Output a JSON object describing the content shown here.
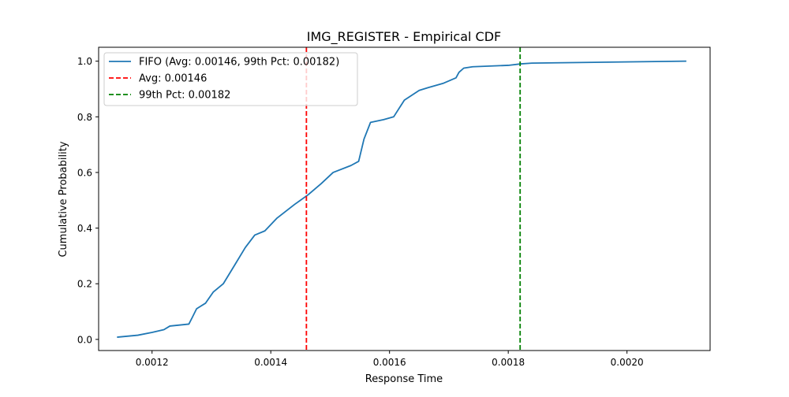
{
  "chart_data": {
    "type": "line",
    "title": "IMG_REGISTER - Empirical CDF",
    "xlabel": "Response Time",
    "ylabel": "Cumulative Probability",
    "xlim": [
      0.00111,
      0.00214
    ],
    "ylim": [
      -0.04,
      1.05
    ],
    "x_ticks": [
      0.0012,
      0.0014,
      0.0016,
      0.0018,
      0.002
    ],
    "x_tick_labels": [
      "0.0012",
      "0.0014",
      "0.0016",
      "0.0018",
      "0.0020"
    ],
    "y_ticks": [
      0.0,
      0.2,
      0.4,
      0.6,
      0.8,
      1.0
    ],
    "y_tick_labels": [
      "0.0",
      "0.2",
      "0.4",
      "0.6",
      "0.8",
      "1.0"
    ],
    "grid": false,
    "legend_position": "top-left",
    "series": [
      {
        "name": "FIFO (Avg: 0.00146, 99th Pct: 0.00182)",
        "color": "#1f77b4",
        "x": [
          0.001141,
          0.001176,
          0.0012,
          0.00122,
          0.00123,
          0.001262,
          0.001268,
          0.001275,
          0.00129,
          0.001303,
          0.00132,
          0.00134,
          0.001357,
          0.001373,
          0.00139,
          0.00141,
          0.00144,
          0.001463,
          0.001485,
          0.001505,
          0.001535,
          0.001548,
          0.001557,
          0.001568,
          0.00159,
          0.001607,
          0.001625,
          0.00165,
          0.001665,
          0.00169,
          0.001712,
          0.001717,
          0.001725,
          0.00174,
          0.0018,
          0.00182,
          0.00184,
          0.0021
        ],
        "values": [
          0.008,
          0.015,
          0.025,
          0.035,
          0.048,
          0.055,
          0.08,
          0.11,
          0.13,
          0.17,
          0.2,
          0.27,
          0.33,
          0.375,
          0.39,
          0.435,
          0.485,
          0.52,
          0.56,
          0.6,
          0.625,
          0.64,
          0.72,
          0.78,
          0.79,
          0.8,
          0.86,
          0.895,
          0.905,
          0.92,
          0.94,
          0.96,
          0.975,
          0.98,
          0.985,
          0.99,
          0.993,
          1.0
        ]
      },
      {
        "name": "Avg: 0.00146",
        "color": "#ff0000",
        "style": "dashed",
        "vline_x": 0.00146
      },
      {
        "name": "99th Pct: 0.00182",
        "color": "#008000",
        "style": "dashed",
        "vline_x": 0.00182
      }
    ]
  }
}
